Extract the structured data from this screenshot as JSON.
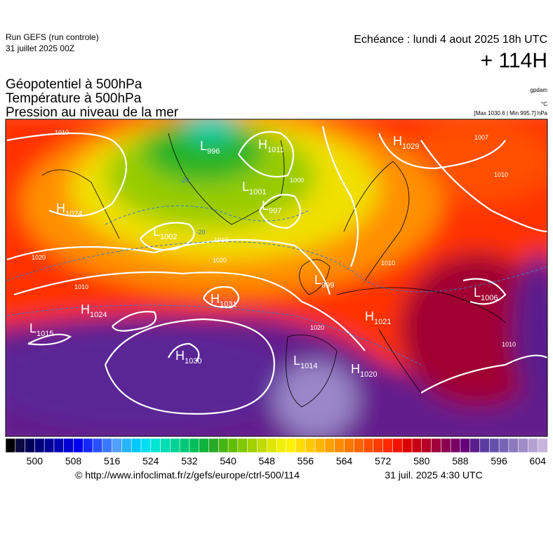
{
  "header": {
    "run": "Run GEFS (run controle)",
    "run_date": "31 juillet 2025 00Z",
    "echeance": "Echéance : lundi 4 aout 2025 18h UTC",
    "lead": "+ 114H"
  },
  "titles": [
    "Géopotentiel à 500hPa",
    "Température à 500hPa",
    "Pression au niveau de la mer"
  ],
  "units": [
    "gpdam",
    "°C",
    "[Max 1030.6 | Min 995.7] hPa"
  ],
  "map": {
    "centers": [
      {
        "type": "L",
        "value": "996"
      },
      {
        "type": "H",
        "value": "1011"
      },
      {
        "type": "L",
        "value": "1001"
      },
      {
        "type": "L",
        "value": "997"
      },
      {
        "type": "H",
        "value": "1024"
      },
      {
        "type": "L",
        "value": "1002"
      },
      {
        "type": "H",
        "value": "1029"
      },
      {
        "type": "H",
        "value": "1031"
      },
      {
        "type": "H",
        "value": "1024"
      },
      {
        "type": "L",
        "value": "1015"
      },
      {
        "type": "H",
        "value": "1030"
      },
      {
        "type": "L",
        "value": "1014"
      },
      {
        "type": "H",
        "value": "1020"
      },
      {
        "type": "H",
        "value": "1021"
      },
      {
        "type": "L",
        "value": "1006"
      },
      {
        "type": "L",
        "value": "999"
      }
    ],
    "contour_labels": [
      "1010",
      "-20",
      "1010",
      "1020",
      "1020",
      "1010",
      "1000",
      "-20",
      "1010",
      "1010",
      "1010",
      "1020",
      "1007"
    ]
  },
  "colorbar": {
    "lim": [
      494,
      606
    ],
    "ticks": [
      500,
      508,
      516,
      524,
      532,
      540,
      548,
      556,
      564,
      572,
      580,
      588,
      596,
      604
    ],
    "colors": [
      "#000000",
      "#0a0a40",
      "#00005a",
      "#000078",
      "#000096",
      "#0000b4",
      "#0000d2",
      "#0000f0",
      "#1428ff",
      "#2850ff",
      "#3c78ff",
      "#50a0ff",
      "#28b4ff",
      "#00c8ff",
      "#00dcf0",
      "#00e6d2",
      "#00dcb4",
      "#00d296",
      "#00c878",
      "#00be5a",
      "#10b43c",
      "#28aa28",
      "#46b414",
      "#64be00",
      "#82c800",
      "#a0d200",
      "#bedc00",
      "#dce600",
      "#f0f000",
      "#fff000",
      "#ffdc00",
      "#ffc800",
      "#ffb400",
      "#ffa000",
      "#ff8c00",
      "#ff7800",
      "#ff6400",
      "#ff5000",
      "#ff3c00",
      "#ff2800",
      "#f01400",
      "#dc0000",
      "#c80014",
      "#b40028",
      "#a0003c",
      "#8c0050",
      "#780064",
      "#640078",
      "#5a1e8c",
      "#5a3ca0",
      "#6450aa",
      "#7864b4",
      "#8c78be",
      "#a08cc8",
      "#b4a0d2",
      "#c8b4dc"
    ]
  },
  "footer": {
    "source": "© http://www.infoclimat.fr/z/gefs/europe/ctrl-500/114",
    "generated": "31 juil. 2025  4:30 UTC"
  }
}
